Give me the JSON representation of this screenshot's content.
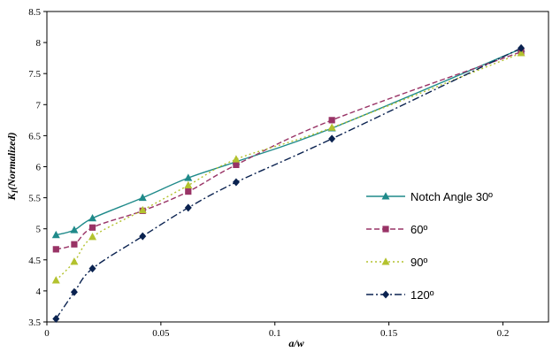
{
  "chart_data": {
    "type": "line",
    "title": "",
    "xlabel": "a/w",
    "ylabel": "KI(Normalized)",
    "ylabel_main": "K",
    "ylabel_sub": "I",
    "ylabel_rest": "(Normalized)",
    "xlim": [
      0,
      0.22
    ],
    "ylim": [
      3.5,
      8.5
    ],
    "xticks": [
      "0",
      "0.05",
      "0.1",
      "0.15",
      "0.2"
    ],
    "yticks": [
      "3.5",
      "4",
      "4.5",
      "5",
      "5.5",
      "6",
      "6.5",
      "7",
      "7.5",
      "8",
      "8.5"
    ],
    "grid": false,
    "legend_position": "right",
    "series": [
      {
        "name": "Notch Angle 30º",
        "color": "#1f8a8a",
        "marker": "triangle",
        "dash": "solid",
        "x": [
          0.004,
          0.012,
          0.02,
          0.042,
          0.062,
          0.083,
          0.125,
          0.208
        ],
        "y": [
          4.9,
          4.98,
          5.17,
          5.5,
          5.82,
          6.08,
          6.62,
          7.9
        ]
      },
      {
        "name": "60º",
        "color": "#993366",
        "marker": "square",
        "dash": "dashed",
        "x": [
          0.004,
          0.012,
          0.02,
          0.042,
          0.062,
          0.083,
          0.125,
          0.208
        ],
        "y": [
          4.67,
          4.75,
          5.02,
          5.29,
          5.6,
          6.03,
          6.75,
          7.85
        ]
      },
      {
        "name": "90º",
        "color": "#b3c22e",
        "marker": "triangle",
        "dash": "dotted",
        "x": [
          0.004,
          0.012,
          0.02,
          0.042,
          0.062,
          0.083,
          0.125,
          0.208
        ],
        "y": [
          4.17,
          4.47,
          4.87,
          5.3,
          5.7,
          6.12,
          6.63,
          7.83
        ]
      },
      {
        "name": "120º",
        "color": "#0a2250",
        "marker": "diamond",
        "dash": "dashdot",
        "x": [
          0.004,
          0.012,
          0.02,
          0.042,
          0.062,
          0.083,
          0.125,
          0.208
        ],
        "y": [
          3.55,
          3.98,
          4.36,
          4.88,
          5.34,
          5.75,
          6.45,
          7.91
        ]
      }
    ]
  }
}
